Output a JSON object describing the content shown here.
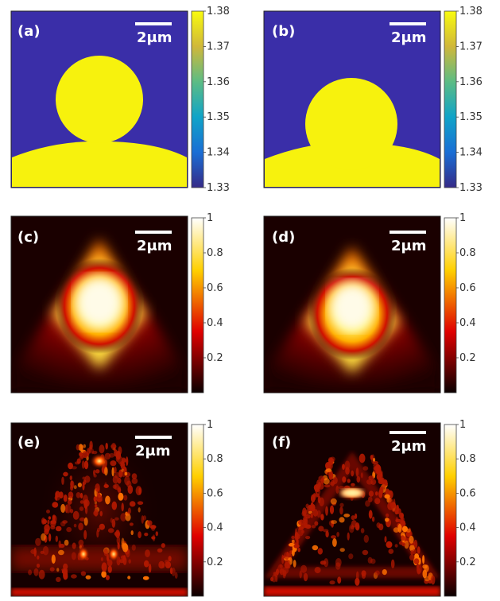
{
  "panels": [
    {
      "label": "(a)",
      "scalebar": "2μm"
    },
    {
      "label": "(b)",
      "scalebar": "2μm"
    },
    {
      "label": "(c)",
      "scalebar": "2μm"
    },
    {
      "label": "(d)",
      "scalebar": "2μm"
    },
    {
      "label": "(e)",
      "scalebar": "2μm"
    },
    {
      "label": "(f)",
      "scalebar": "2μm"
    }
  ],
  "colorbars": {
    "index": {
      "colormap": "parula",
      "range": [
        1.33,
        1.38
      ],
      "ticks": [
        "1.38",
        "1.37",
        "1.36",
        "1.35",
        "1.34",
        "1.33"
      ]
    },
    "intensity": {
      "colormap": "hot",
      "range": [
        0,
        1
      ],
      "ticks": [
        "1",
        "0.8",
        "0.6",
        "0.4",
        "0.2"
      ]
    }
  },
  "colors": {
    "background_index": "#3a2ea8",
    "object_index": "#f7f20d",
    "hot_dark": "#1a0000",
    "hot_red": "#d01000",
    "hot_yellow": "#ffee60",
    "hot_white": "#fffbe8"
  }
}
